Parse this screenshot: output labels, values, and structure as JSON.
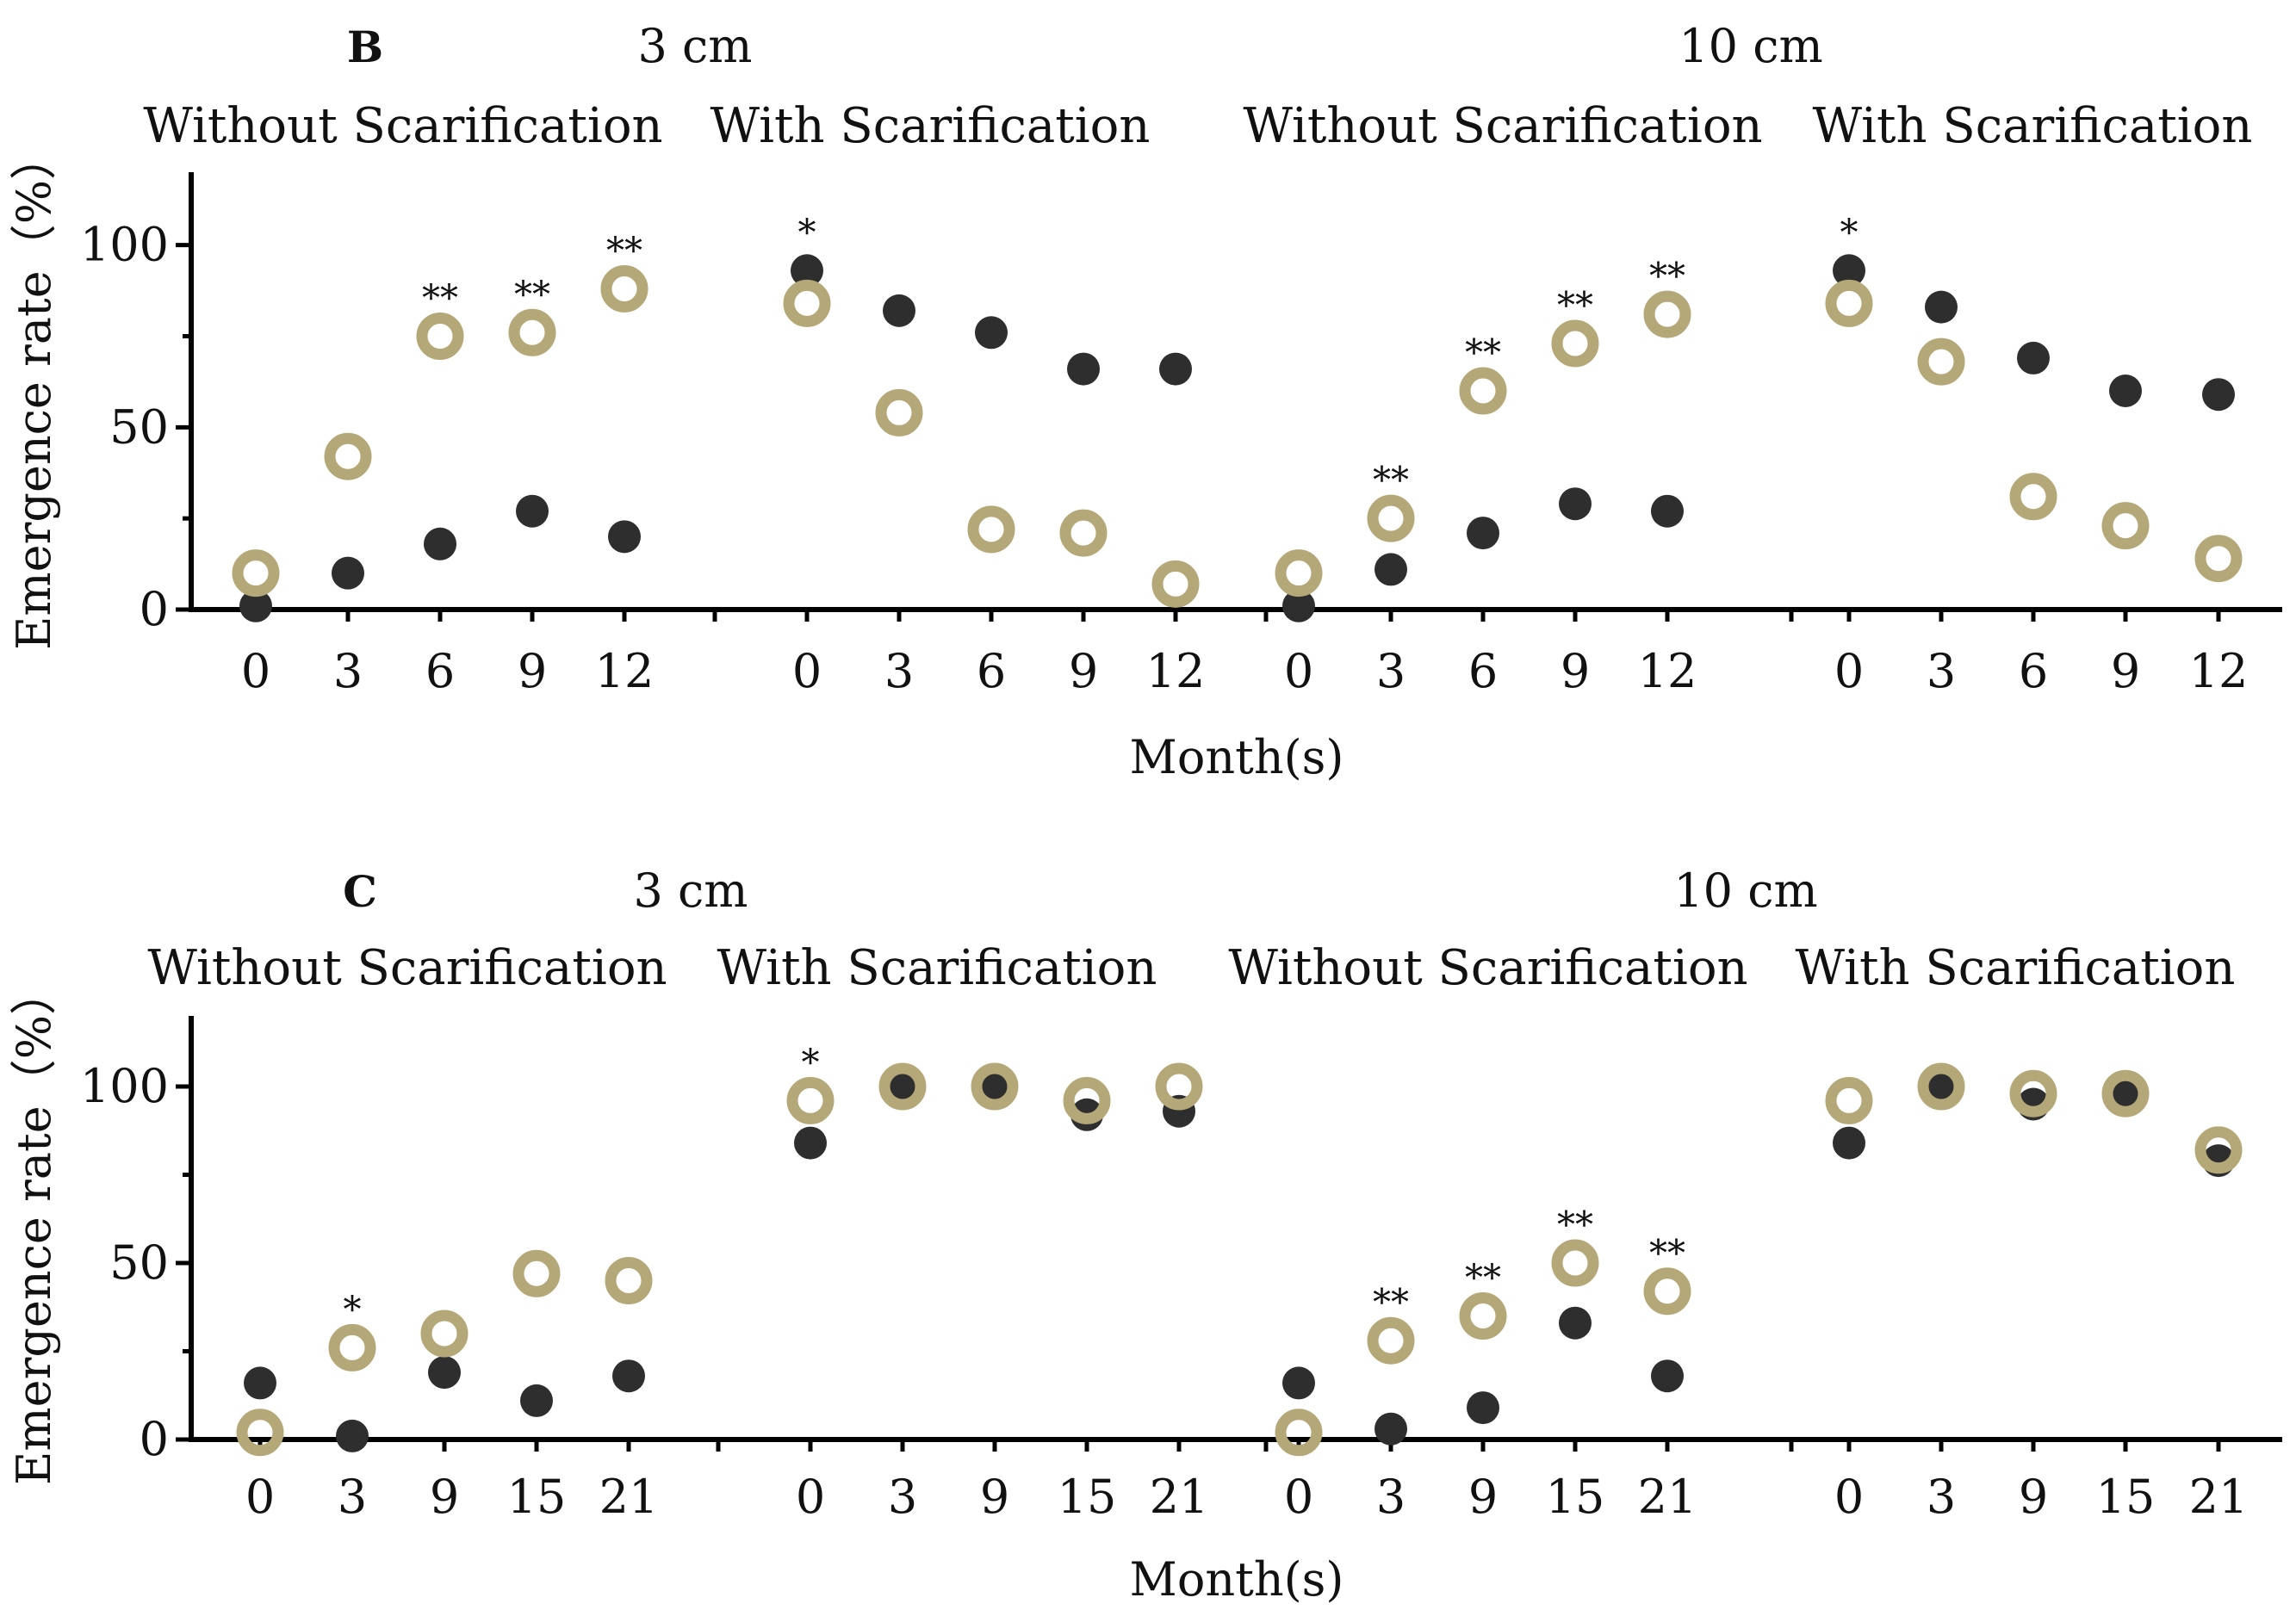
{
  "colors": {
    "without_scarification_marker": "#2e2e2e",
    "with_scarification_marker": "#b5a878",
    "axis": "#000000"
  },
  "chart_data": [
    {
      "type": "scatter",
      "panel": "B",
      "ylabel": "Emergence rate（%）",
      "xlabel": "Month(s)",
      "ylim": [
        0,
        120
      ],
      "yticks": [
        0,
        50,
        100
      ],
      "grid": false,
      "groups": [
        {
          "depth": "3 cm",
          "name": "Without Scarification",
          "x": [
            "0",
            "3",
            "6",
            "9",
            "12"
          ],
          "series": [
            {
              "marker": "filled",
              "values": [
                1,
                10,
                18,
                27,
                20
              ]
            },
            {
              "marker": "open",
              "values": [
                10,
                42,
                75,
                76,
                88
              ]
            }
          ],
          "significance": [
            "",
            "",
            "**",
            "**",
            "**"
          ]
        },
        {
          "depth": "3 cm",
          "name": "With Scarification",
          "x": [
            "0",
            "3",
            "6",
            "9",
            "12"
          ],
          "series": [
            {
              "marker": "filled",
              "values": [
                93,
                82,
                76,
                66,
                66
              ]
            },
            {
              "marker": "open",
              "values": [
                84,
                54,
                22,
                21,
                7
              ]
            }
          ],
          "significance": [
            "*",
            "",
            "",
            "",
            ""
          ]
        },
        {
          "depth": "10 cm",
          "name": "Without Scarification",
          "x": [
            "0",
            "3",
            "6",
            "9",
            "12"
          ],
          "series": [
            {
              "marker": "filled",
              "values": [
                1,
                11,
                21,
                29,
                27
              ]
            },
            {
              "marker": "open",
              "values": [
                10,
                25,
                60,
                73,
                81
              ]
            }
          ],
          "significance": [
            "",
            "**",
            "**",
            "**",
            "**"
          ]
        },
        {
          "depth": "10 cm",
          "name": "With Scarification",
          "x": [
            "0",
            "3",
            "6",
            "9",
            "12"
          ],
          "series": [
            {
              "marker": "filled",
              "values": [
                93,
                83,
                69,
                60,
                59
              ]
            },
            {
              "marker": "open",
              "values": [
                84,
                68,
                31,
                23,
                14
              ]
            }
          ],
          "significance": [
            "*",
            "",
            "",
            "",
            ""
          ]
        }
      ]
    },
    {
      "type": "scatter",
      "panel": "C",
      "ylabel": "Emergence rate（%）",
      "xlabel": "Month(s)",
      "ylim": [
        0,
        120
      ],
      "yticks": [
        0,
        50,
        100
      ],
      "grid": false,
      "groups": [
        {
          "depth": "3 cm",
          "name": "Without Scarification",
          "x": [
            "0",
            "3",
            "9",
            "15",
            "21"
          ],
          "series": [
            {
              "marker": "filled",
              "values": [
                16,
                1,
                19,
                11,
                18
              ]
            },
            {
              "marker": "open",
              "values": [
                2,
                26,
                30,
                47,
                45
              ]
            }
          ],
          "significance": [
            "",
            "*",
            "",
            "",
            ""
          ]
        },
        {
          "depth": "3 cm",
          "name": "With Scarification",
          "x": [
            "0",
            "3",
            "9",
            "15",
            "21"
          ],
          "series": [
            {
              "marker": "filled",
              "values": [
                84,
                99,
                99,
                92,
                93
              ]
            },
            {
              "marker": "open",
              "values": [
                96,
                100,
                100,
                96,
                100
              ]
            }
          ],
          "significance": [
            "*",
            "",
            "",
            "",
            ""
          ]
        },
        {
          "depth": "10 cm",
          "name": "Without Scarification",
          "x": [
            "0",
            "3",
            "9",
            "15",
            "21"
          ],
          "series": [
            {
              "marker": "filled",
              "values": [
                16,
                3,
                9,
                33,
                18
              ]
            },
            {
              "marker": "open",
              "values": [
                2,
                28,
                35,
                50,
                42
              ]
            }
          ],
          "significance": [
            "",
            "**",
            "**",
            "**",
            "**"
          ]
        },
        {
          "depth": "10 cm",
          "name": "With Scarification",
          "x": [
            "0",
            "3",
            "9",
            "15",
            "21"
          ],
          "series": [
            {
              "marker": "filled",
              "values": [
                84,
                99,
                95,
                98,
                79
              ]
            },
            {
              "marker": "open",
              "values": [
                96,
                100,
                98,
                98,
                82
              ]
            }
          ],
          "significance": [
            "",
            "",
            "",
            "",
            ""
          ]
        }
      ]
    }
  ]
}
